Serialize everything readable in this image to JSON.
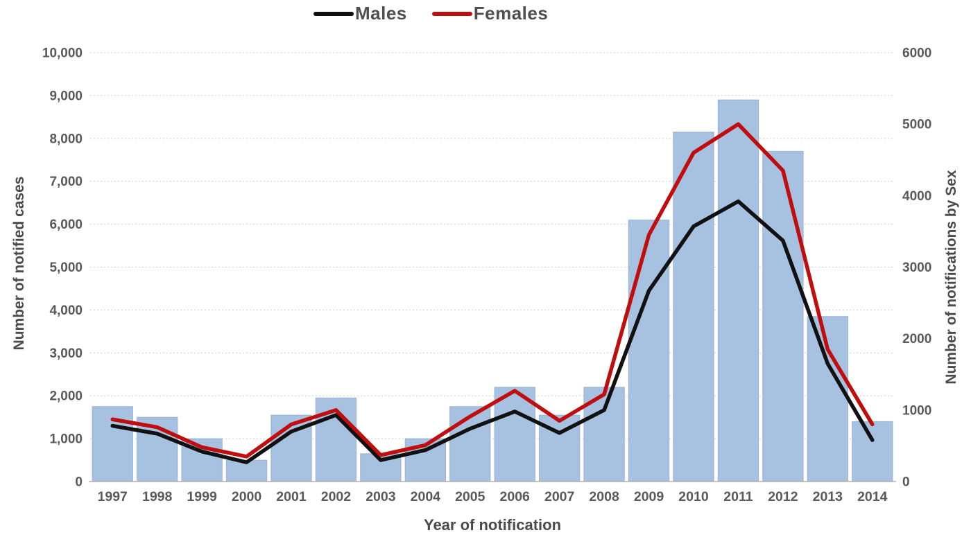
{
  "figure": {
    "background": "#ffffff"
  },
  "legend": {
    "position": "top-center",
    "items": [
      {
        "label": "Males",
        "color": "#111111"
      },
      {
        "label": "Females",
        "color": "#c00d0d"
      }
    ]
  },
  "chart_data": {
    "type": "bar+line",
    "categories": [
      "1997",
      "1998",
      "1999",
      "2000",
      "2001",
      "2002",
      "2003",
      "2004",
      "2005",
      "2006",
      "2007",
      "2008",
      "2009",
      "2010",
      "2011",
      "2012",
      "2013",
      "2014"
    ],
    "bar_series": {
      "name": "Number of notified cases",
      "axis": "left",
      "color": "#a7c1e1",
      "values": [
        1750,
        1500,
        1000,
        500,
        1550,
        1950,
        650,
        1000,
        1750,
        2200,
        1550,
        2200,
        6100,
        8150,
        8900,
        7700,
        3850,
        1400
      ]
    },
    "series": [
      {
        "name": "Males",
        "type": "line",
        "axis": "right",
        "color": "#111111",
        "values": [
          780,
          670,
          420,
          270,
          700,
          930,
          300,
          440,
          740,
          980,
          680,
          1000,
          2670,
          3570,
          3920,
          3370,
          1650,
          580
        ]
      },
      {
        "name": "Females",
        "type": "line",
        "axis": "right",
        "color": "#c00d0d",
        "values": [
          870,
          760,
          480,
          350,
          800,
          1000,
          370,
          510,
          910,
          1270,
          850,
          1220,
          3450,
          4600,
          5000,
          4350,
          1850,
          800
        ]
      }
    ],
    "left_axis": {
      "title": "Number of notified cases",
      "min": 0,
      "max": 10000,
      "tick_step": 1000,
      "tick_labels": [
        "0",
        "1,000",
        "2,000",
        "3,000",
        "4,000",
        "5,000",
        "6,000",
        "7,000",
        "8,000",
        "9,000",
        "10,000"
      ]
    },
    "right_axis": {
      "title": "Number of notifications  by Sex",
      "min": 0,
      "max": 6000,
      "tick_step": 1000,
      "tick_labels": [
        "0",
        "1000",
        "2000",
        "3000",
        "4000",
        "5000",
        "6000"
      ]
    },
    "x_axis": {
      "title": "Year of notification"
    },
    "grid": "horizontal-dotted",
    "legend_position": "top-center"
  }
}
